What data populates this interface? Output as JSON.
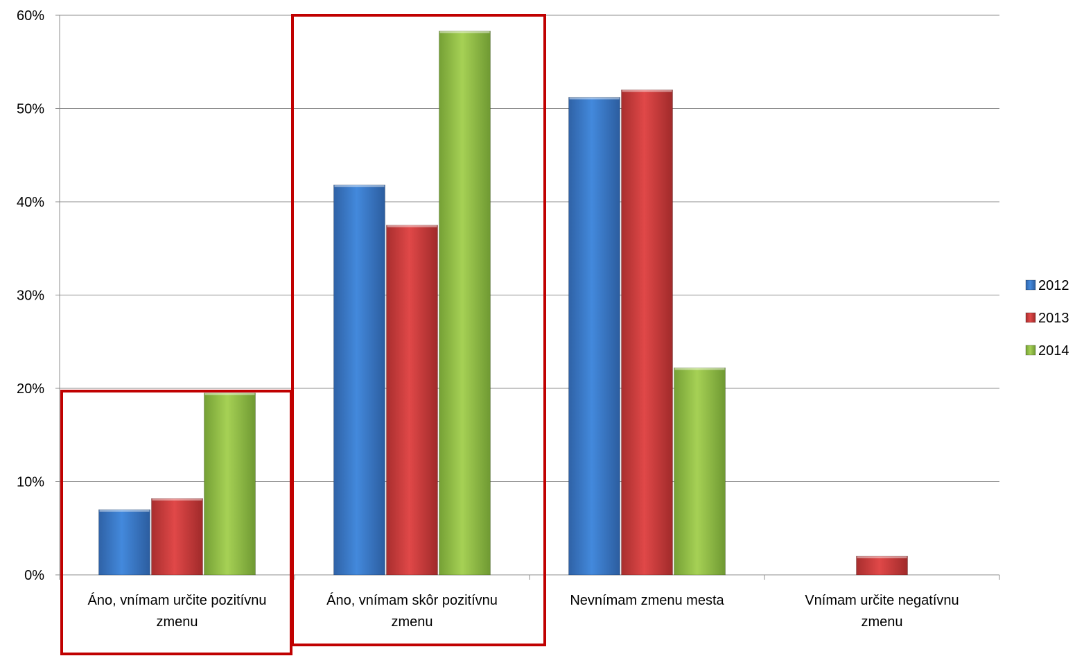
{
  "chart_data": {
    "type": "bar",
    "categories": [
      [
        "Áno, vnímam určite pozitívnu",
        "zmenu"
      ],
      [
        "Áno, vnímam skôr pozitívnu",
        "zmenu"
      ],
      [
        "Nevnímam zmenu mesta"
      ],
      [
        "Vnímam určite negatívnu",
        "zmenu"
      ]
    ],
    "series": [
      {
        "name": "2012",
        "color": "#3c7fd0",
        "values": [
          7.0,
          41.8,
          51.2,
          0
        ]
      },
      {
        "name": "2013",
        "color": "#d13f3f",
        "values": [
          8.2,
          37.5,
          52.0,
          2.0
        ]
      },
      {
        "name": "2014",
        "color": "#94c04a",
        "values": [
          19.5,
          58.3,
          22.2,
          0
        ]
      }
    ],
    "ylim": [
      0,
      60
    ],
    "yticks": [
      "0%",
      "10%",
      "20%",
      "30%",
      "40%",
      "50%",
      "60%"
    ],
    "grid": true,
    "legend_position": "right",
    "highlight_color": "#c00000"
  }
}
